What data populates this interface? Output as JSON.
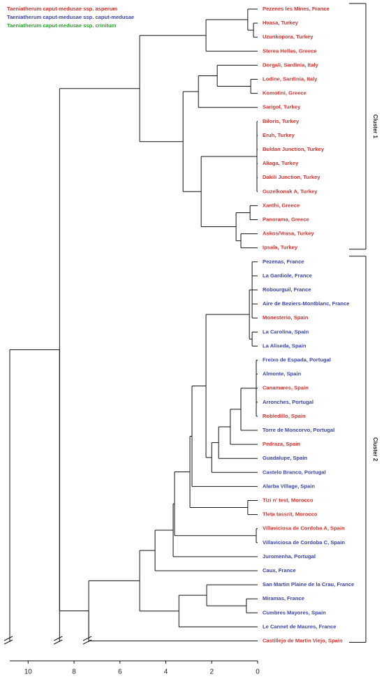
{
  "legend": [
    {
      "label": "Taeniatherum caput-medusae ssp. asperum",
      "color": "#d0312d"
    },
    {
      "label": "Taeniatherum caput-medusae ssp. caput-medusae",
      "color": "#3a44a8"
    },
    {
      "label": "Taeniatherum caput-medusae ssp. crinitum",
      "color": "#2ca02c"
    }
  ],
  "axis": {
    "lim": [
      10.8,
      0
    ],
    "ticks": [
      10,
      8,
      6,
      4,
      2,
      0
    ]
  },
  "tree": {
    "height": 10.8,
    "children": [
      {
        "height": 8.63,
        "children": [
          {
            "height": 5.14,
            "cluster": "Cluster 1",
            "children": [
              {
                "height": 2.25,
                "children": [
                  {
                    "height": 0.43,
                    "children": [
                      {
                        "label": "Pezenes les Mines, France",
                        "color": "#d0312d"
                      },
                      {
                        "height": 0.18,
                        "children": [
                          {
                            "label": "Hvasa, Turkey",
                            "color": "#d0312d"
                          },
                          {
                            "label": "Uzunkopora, Turkey",
                            "color": "#d0312d"
                          }
                        ]
                      }
                    ]
                  },
                  {
                    "label": "Sterea Hellas, Greece",
                    "color": "#d0312d"
                  }
                ]
              },
              {
                "height": 3.25,
                "children": [
                  {
                    "height": 2.58,
                    "children": [
                      {
                        "height": 1.76,
                        "children": [
                          {
                            "label": "Dorgali, Sardinia, Italy",
                            "color": "#d0312d"
                          },
                          {
                            "height": 0.3,
                            "children": [
                              {
                                "label": "Lodine, Sardinia, Italy",
                                "color": "#d0312d"
                              },
                              {
                                "label": "Komotini, Greece",
                                "color": "#d0312d"
                              }
                            ]
                          }
                        ]
                      },
                      {
                        "label": "Sarigol, Turkey",
                        "color": "#d0312d"
                      }
                    ]
                  },
                  {
                    "height": 2.46,
                    "children": [
                      {
                        "height": 0.03,
                        "children": [
                          {
                            "label": "Biloris, Turkey",
                            "color": "#d0312d"
                          },
                          {
                            "label": "Eruh, Turkey",
                            "color": "#d0312d"
                          },
                          {
                            "label": "Buldan Junction, Turkey",
                            "color": "#d0312d"
                          },
                          {
                            "label": "Aliaga, Turkey",
                            "color": "#d0312d"
                          },
                          {
                            "label": "Dakili Junction, Turkey",
                            "color": "#d0312d"
                          },
                          {
                            "label": "Guzelkonak A, Turkey",
                            "color": "#d0312d"
                          }
                        ]
                      },
                      {
                        "height": 0.94,
                        "children": [
                          {
                            "height": 0.33,
                            "children": [
                              {
                                "label": "Xanthi, Greece",
                                "color": "#d0312d"
                              },
                              {
                                "label": "Panorama, Greece",
                                "color": "#d0312d"
                              }
                            ]
                          },
                          {
                            "height": 0.73,
                            "children": [
                              {
                                "label": "Askos/Vrasa, Turkey",
                                "color": "#d0312d"
                              },
                              {
                                "label": "Ipsala, Turkey",
                                "color": "#d0312d"
                              }
                            ]
                          }
                        ]
                      }
                    ]
                  }
                ]
              }
            ]
          },
          {
            "height": 7.36,
            "cluster": "Cluster 2",
            "children": [
              {
                "height": 5.14,
                "children": [
                  {
                    "height": 4.47,
                    "children": [
                      {
                        "height": 3.68,
                        "children": [
                          {
                            "height": 3.62,
                            "children": [
                              {
                                "height": 2.95,
                                "children": [
                                  {
                                    "height": 2.86,
                                    "children": [
                                      {
                                        "height": 2.25,
                                        "children": [
                                          {
                                            "height": 0.36,
                                            "children": [
                                              {
                                                "height": 0.24,
                                                "children": [
                                                  {
                                                    "label": "Pezenas, France",
                                                    "color": "#3a44a8"
                                                  },
                                                  {
                                                    "label": "La Gardiole, France",
                                                    "color": "#3a44a8"
                                                  },
                                                  {
                                                    "label": "Robourguil, France",
                                                    "color": "#3a44a8"
                                                  },
                                                  {
                                                    "label": "Aire de Beziers-Montblanc, France",
                                                    "color": "#3a44a8"
                                                  },
                                                  {
                                                    "label": "Monesterio, Spain",
                                                    "color": "#d0312d"
                                                  }
                                                ]
                                              },
                                              {
                                                "height": 0.24,
                                                "children": [
                                                  {
                                                    "label": "La Carolina, Spain",
                                                    "color": "#3a44a8"
                                                  },
                                                  {
                                                    "label": "La Aliseda, Spain",
                                                    "color": "#3a44a8"
                                                  }
                                                ]
                                              }
                                            ]
                                          },
                                          {
                                            "height": 2.0,
                                            "children": [
                                              {
                                                "height": 1.7,
                                                "children": [
                                                  {
                                                    "height": 1.19,
                                                    "children": [
                                                      {
                                                        "height": 0.73,
                                                        "children": [
                                                          {
                                                            "height": 0.06,
                                                            "children": [
                                                              {
                                                                "label": "Freixo de Espada, Portugal",
                                                                "color": "#3a44a8"
                                                              },
                                                              {
                                                                "label": "Almonte, Spain",
                                                                "color": "#3a44a8"
                                                              },
                                                              {
                                                                "label": "Canamares, Spain",
                                                                "color": "#d0312d"
                                                              },
                                                              {
                                                                "label": "Arronches, Portugal",
                                                                "color": "#3a44a8"
                                                              },
                                                              {
                                                                "label": "Robledillo, Spain",
                                                                "color": "#d0312d"
                                                              }
                                                            ]
                                                          },
                                                          {
                                                            "label": "Torre de Moncorvo, Portugal",
                                                            "color": "#3a44a8"
                                                          }
                                                        ]
                                                      },
                                                      {
                                                        "label": "Pedraza, Spain",
                                                        "color": "#d0312d"
                                                      }
                                                    ]
                                                  },
                                                  {
                                                    "label": "Guadalupe, Spain",
                                                    "color": "#3a44a8"
                                                  }
                                                ]
                                              },
                                              {
                                                "label": "Castelo Branco, Portugal",
                                                "color": "#3a44a8"
                                              }
                                            ]
                                          }
                                        ]
                                      },
                                      {
                                        "label": "Alarba Village, Spain",
                                        "color": "#3a44a8"
                                      }
                                    ]
                                  },
                                  {
                                    "height": 0.43,
                                    "children": [
                                      {
                                        "label": "Tizi n' test, Morocco",
                                        "color": "#d0312d"
                                      },
                                      {
                                        "label": "Tleta tassrit, Morocco",
                                        "color": "#d0312d"
                                      }
                                    ]
                                  }
                                ]
                              },
                              {
                                "height": 0.06,
                                "children": [
                                  {
                                    "label": "Villaviciosa de Cordoba A, Spain",
                                    "color": "#d0312d"
                                  },
                                  {
                                    "label": "Villaviciosa de Cordoba C, Spain",
                                    "color": "#3a44a8"
                                  }
                                ]
                              }
                            ]
                          },
                          {
                            "label": "Juromenha, Portugal",
                            "color": "#3a44a8"
                          }
                        ]
                      },
                      {
                        "label": "Caux, France",
                        "color": "#3a44a8"
                      }
                    ]
                  },
                  {
                    "height": 3.43,
                    "children": [
                      {
                        "height": 2.22,
                        "children": [
                          {
                            "label": "San Martin Plaine de la Crau, France",
                            "color": "#3a44a8"
                          },
                          {
                            "height": 0.49,
                            "children": [
                              {
                                "label": "Miramas, France",
                                "color": "#3a44a8"
                              },
                              {
                                "label": "Cumbres Mayores, Spain",
                                "color": "#3a44a8"
                              }
                            ]
                          }
                        ]
                      },
                      {
                        "label": "Le Cannet de Maures, France",
                        "color": "#3a44a8"
                      }
                    ]
                  }
                ]
              },
              {
                "label": "Castillejo de Martin Viejo, Spain",
                "color": "#d0312d"
              }
            ]
          }
        ]
      }
    ]
  }
}
